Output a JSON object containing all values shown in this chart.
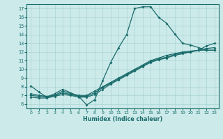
{
  "bg_color": "#cceaea",
  "line_color": "#1a6b6b",
  "grid_color": "#aad4d4",
  "xlabel": "Humidex (Indice chaleur)",
  "xlim": [
    -0.5,
    23.5
  ],
  "ylim": [
    5.5,
    17.5
  ],
  "xticks": [
    0,
    1,
    2,
    3,
    4,
    5,
    6,
    7,
    8,
    9,
    10,
    11,
    12,
    13,
    14,
    15,
    16,
    17,
    18,
    19,
    20,
    21,
    22,
    23
  ],
  "yticks": [
    6,
    7,
    8,
    9,
    10,
    11,
    12,
    13,
    14,
    15,
    16,
    17
  ],
  "line1_x": [
    0,
    1,
    2,
    3,
    4,
    5,
    6,
    7,
    8,
    9,
    10,
    11,
    12,
    13,
    14,
    15,
    16,
    17,
    18,
    19,
    20,
    21,
    22,
    23
  ],
  "line1_y": [
    8.1,
    7.4,
    6.8,
    7.2,
    7.7,
    7.3,
    6.9,
    5.9,
    6.5,
    8.7,
    10.8,
    12.5,
    14.0,
    17.0,
    17.2,
    17.2,
    16.0,
    15.3,
    14.1,
    13.0,
    12.8,
    12.5,
    12.2,
    12.2
  ],
  "line2_x": [
    0,
    1,
    2,
    3,
    4,
    5,
    6,
    7,
    8,
    9,
    10,
    11,
    12,
    13,
    14,
    15,
    16,
    17,
    18,
    19,
    20,
    21,
    22,
    23
  ],
  "line2_y": [
    7.2,
    7.0,
    6.9,
    7.0,
    7.5,
    7.2,
    7.0,
    7.0,
    7.5,
    8.0,
    8.5,
    9.0,
    9.5,
    10.0,
    10.5,
    11.0,
    11.3,
    11.6,
    11.8,
    12.0,
    12.1,
    12.2,
    12.2,
    12.2
  ],
  "line3_x": [
    0,
    1,
    2,
    3,
    4,
    5,
    6,
    7,
    8,
    9,
    10,
    11,
    12,
    13,
    14,
    15,
    16,
    17,
    18,
    19,
    20,
    21,
    22,
    23
  ],
  "line3_y": [
    7.0,
    6.9,
    6.8,
    7.0,
    7.3,
    7.1,
    6.9,
    6.9,
    7.3,
    7.9,
    8.4,
    8.9,
    9.4,
    9.9,
    10.4,
    10.9,
    11.2,
    11.4,
    11.7,
    11.9,
    12.0,
    12.2,
    12.4,
    12.5
  ],
  "line4_x": [
    0,
    1,
    2,
    3,
    4,
    5,
    6,
    7,
    8,
    9,
    10,
    11,
    12,
    13,
    14,
    15,
    16,
    17,
    18,
    19,
    20,
    21,
    22,
    23
  ],
  "line4_y": [
    6.8,
    6.7,
    6.7,
    6.9,
    7.1,
    7.0,
    6.8,
    6.8,
    7.1,
    7.7,
    8.3,
    8.8,
    9.3,
    9.8,
    10.3,
    10.8,
    11.1,
    11.3,
    11.6,
    11.8,
    12.0,
    12.2,
    12.7,
    13.0
  ]
}
